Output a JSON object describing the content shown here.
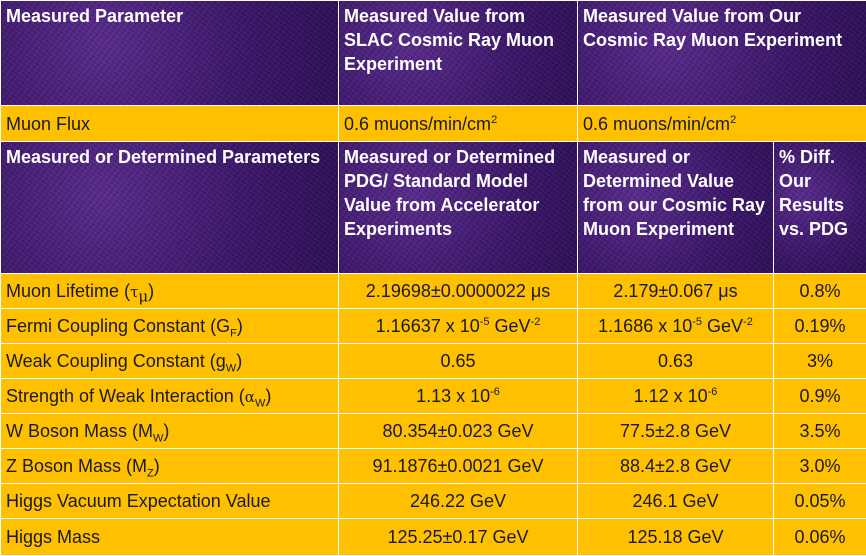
{
  "header1": {
    "col1": "Measured Parameter",
    "col2": "Measured Value from SLAC Cosmic Ray Muon Experiment",
    "col3": "Measured Value from Our Cosmic Ray Muon Experiment"
  },
  "flux": {
    "label": "Muon Flux",
    "slac": "0.6 muons/min/cm",
    "slac_sup": "2",
    "ours": "0.6 muons/min/cm",
    "ours_sup": "2"
  },
  "header2": {
    "col1": "Measured or Determined Parameters",
    "col2": "Measured or Determined PDG/ Standard Model Value from Accelerator Experiments",
    "col3": "Measured or Determined Value from our Cosmic Ray Muon Experiment",
    "col4": "% Diff. Our Results vs. PDG"
  },
  "rows": [
    {
      "name": "Muon Lifetime (",
      "sym": "τ",
      "sub": "μ",
      "close": ")",
      "pdg": "2.19698±0.0000022 μs",
      "ours": "2.179±0.067 μs",
      "diff": "0.8%"
    },
    {
      "name": "Fermi Coupling Constant (G",
      "sub": "F",
      "close": ")",
      "pdg_pre": "1.16637 x 10",
      "pdg_sup": "-5",
      "pdg_mid": " GeV",
      "pdg_sup2": "-2",
      "ours_pre": "1.1686 x 10",
      "ours_sup": "-5",
      "ours_mid": " GeV",
      "ours_sup2": "-2",
      "diff": "0.19%"
    },
    {
      "name": "Weak Coupling Constant (g",
      "sub": "W",
      "close": ")",
      "pdg": "0.65",
      "ours": "0.63",
      "diff": "3%"
    },
    {
      "name": "Strength of Weak Interaction (",
      "sym": "α",
      "sub": "W",
      "close": ")",
      "pdg_pre": "1.13 x 10",
      "pdg_sup": "-6",
      "ours_pre": "1.12 x 10",
      "ours_sup": "-6",
      "diff": "0.9%"
    },
    {
      "name": "W Boson Mass (M",
      "sub": "W",
      "close": ")",
      "pdg": "80.354±0.023 GeV",
      "ours": "77.5±2.8 GeV",
      "diff": "3.5%"
    },
    {
      "name": "Z Boson Mass (M",
      "sub": "Z",
      "close": ")",
      "pdg": "91.1876±0.0021 GeV",
      "ours": "88.4±2.8 GeV",
      "diff": "3.0%"
    },
    {
      "name": "Higgs Vacuum Expectation Value",
      "pdg": "246.22 GeV",
      "ours": "246.1 GeV",
      "diff": "0.05%"
    },
    {
      "name": "Higgs Mass",
      "pdg": "125.25±0.17 GeV",
      "ours": "125.18 GeV",
      "diff": "0.06%"
    }
  ]
}
